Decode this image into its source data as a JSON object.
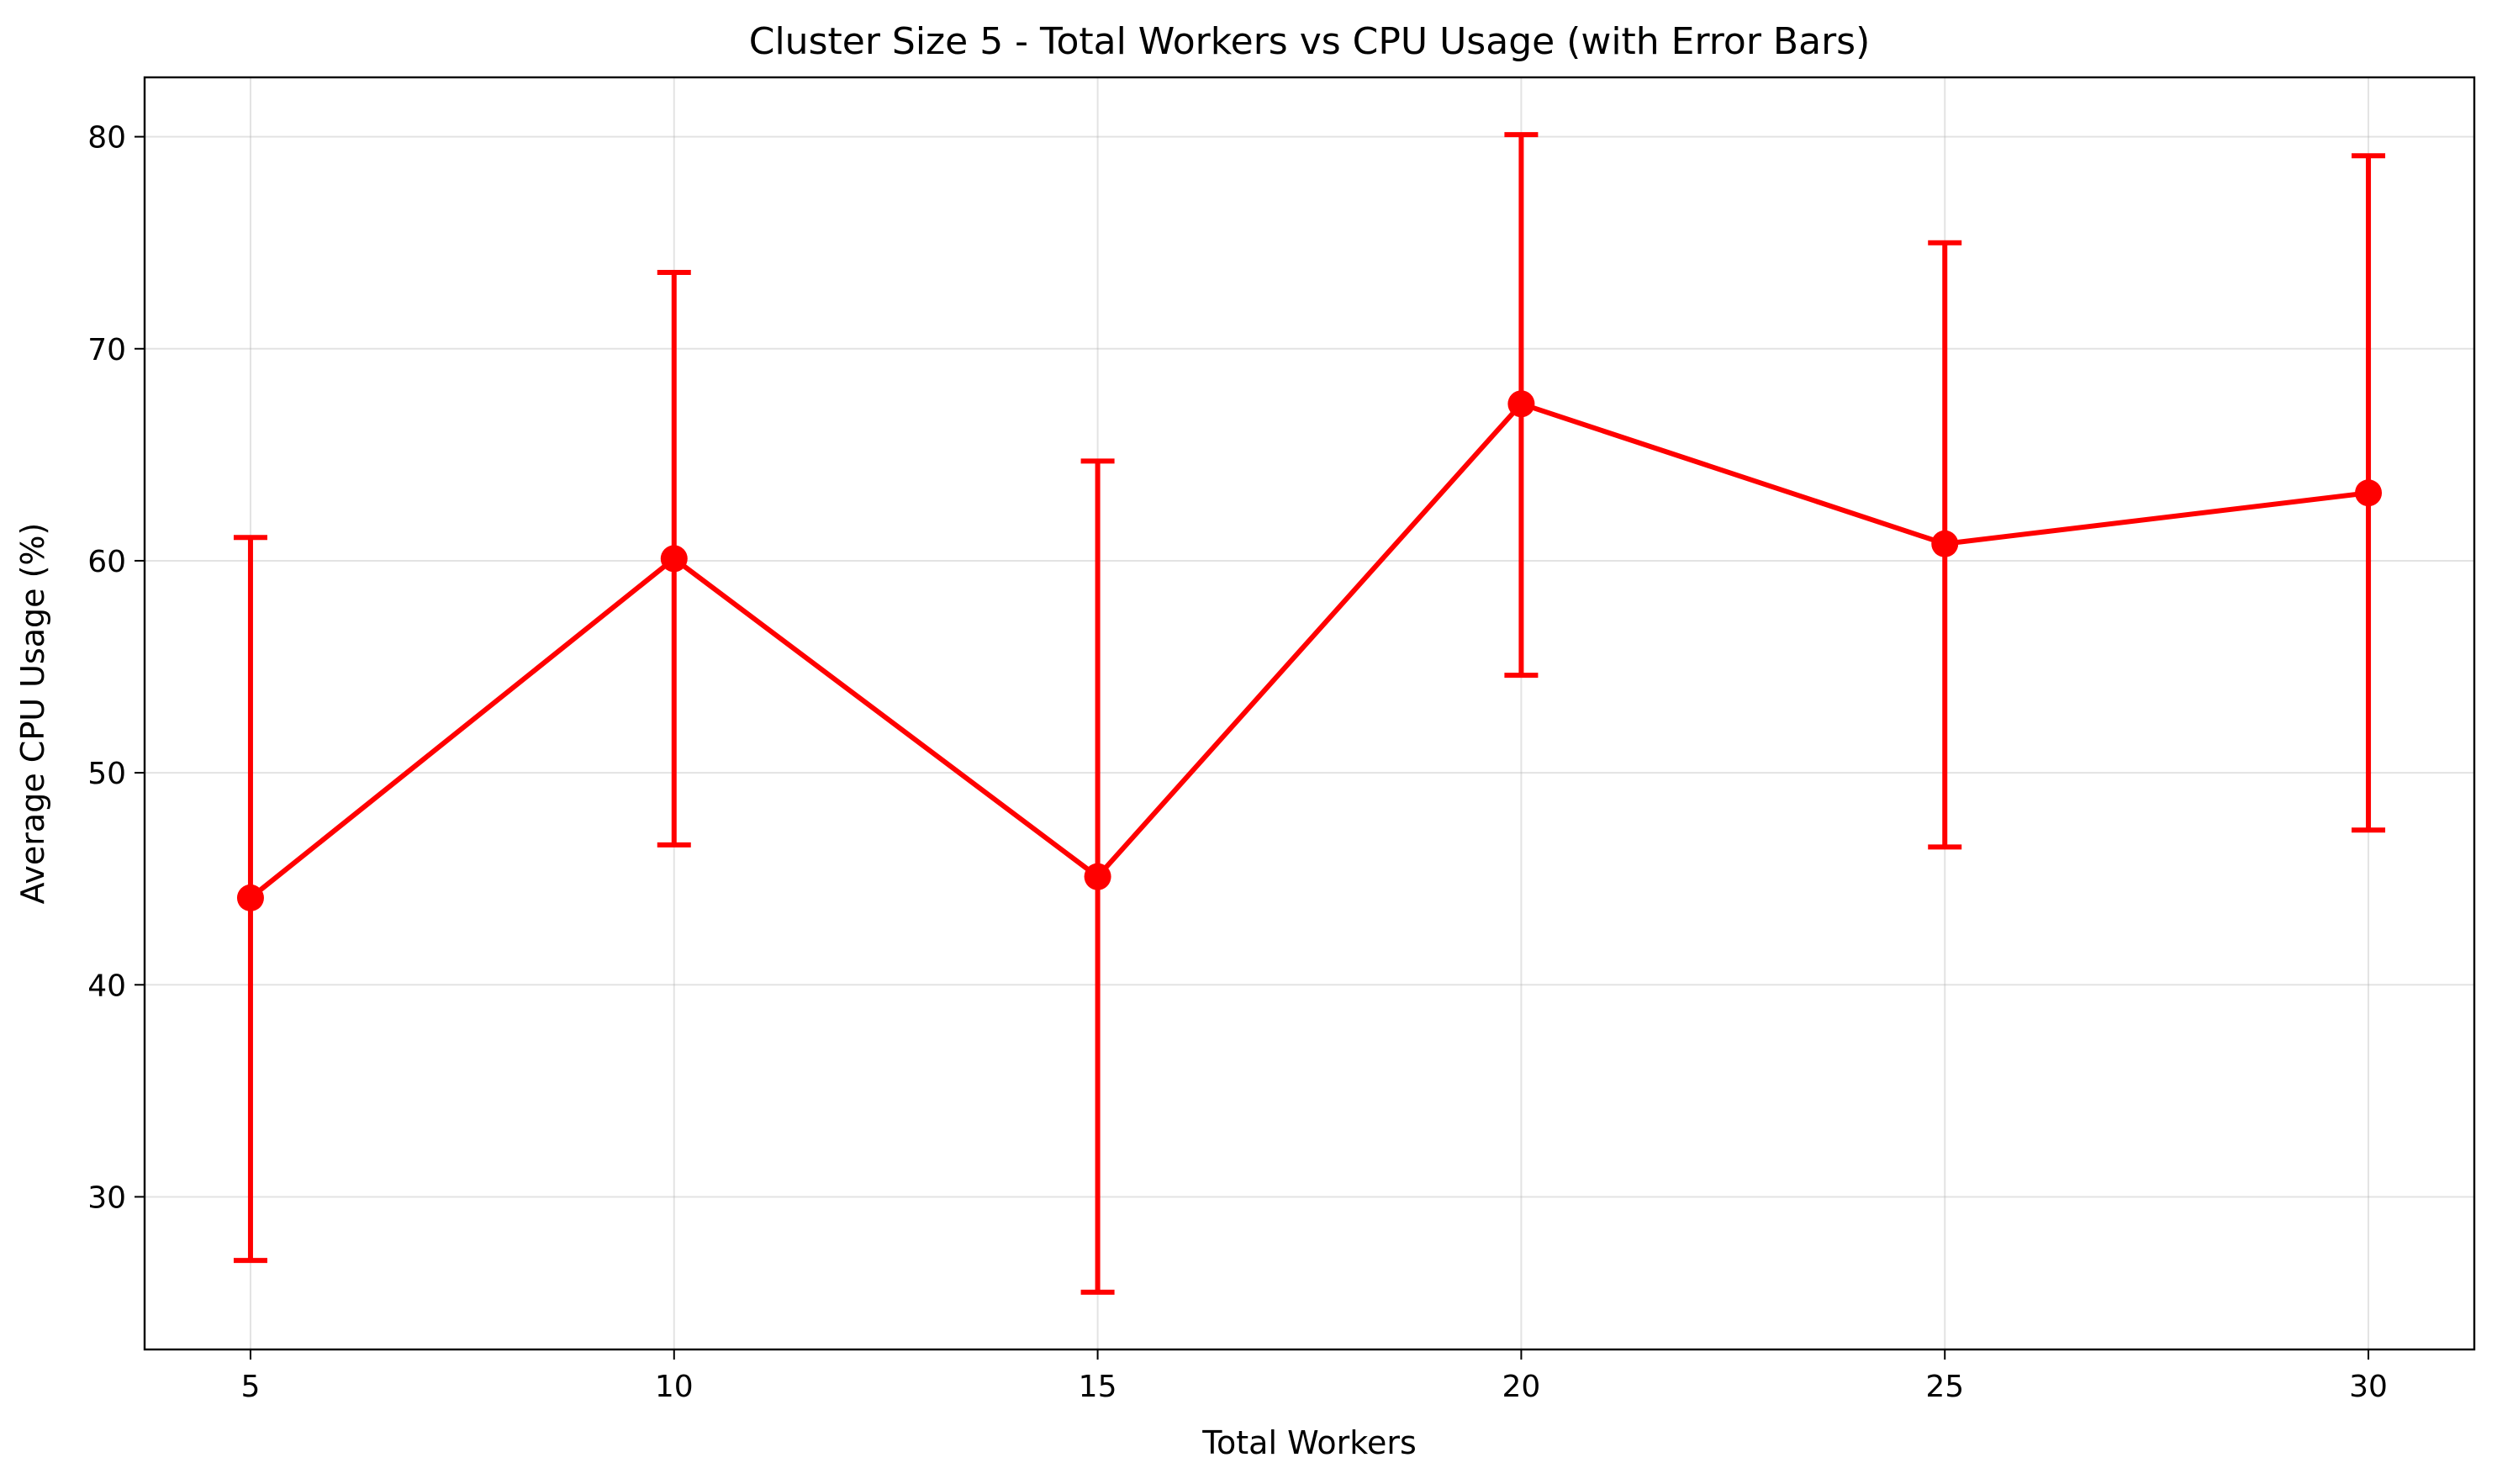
{
  "chart_data": {
    "type": "line",
    "title": "Cluster Size 5 - Total Workers vs CPU Usage (with Error Bars)",
    "xlabel": "Total Workers",
    "ylabel": "Average CPU Usage (%)",
    "xlim": [
      3.75,
      31.25
    ],
    "ylim": [
      22.8,
      82.8
    ],
    "xticks": [
      5,
      10,
      15,
      20,
      25,
      30
    ],
    "yticks": [
      30,
      40,
      50,
      60,
      70,
      80
    ],
    "grid": true,
    "color": "#ff0000",
    "series": [
      {
        "x": [
          5,
          10,
          15,
          20,
          25,
          30
        ],
        "y": [
          44.1,
          60.1,
          45.1,
          67.4,
          60.8,
          63.2
        ],
        "yerr_low": [
          27.0,
          46.6,
          25.5,
          54.6,
          46.5,
          47.3
        ],
        "yerr_high": [
          61.1,
          73.6,
          64.7,
          80.1,
          75.0,
          79.1
        ]
      }
    ]
  }
}
